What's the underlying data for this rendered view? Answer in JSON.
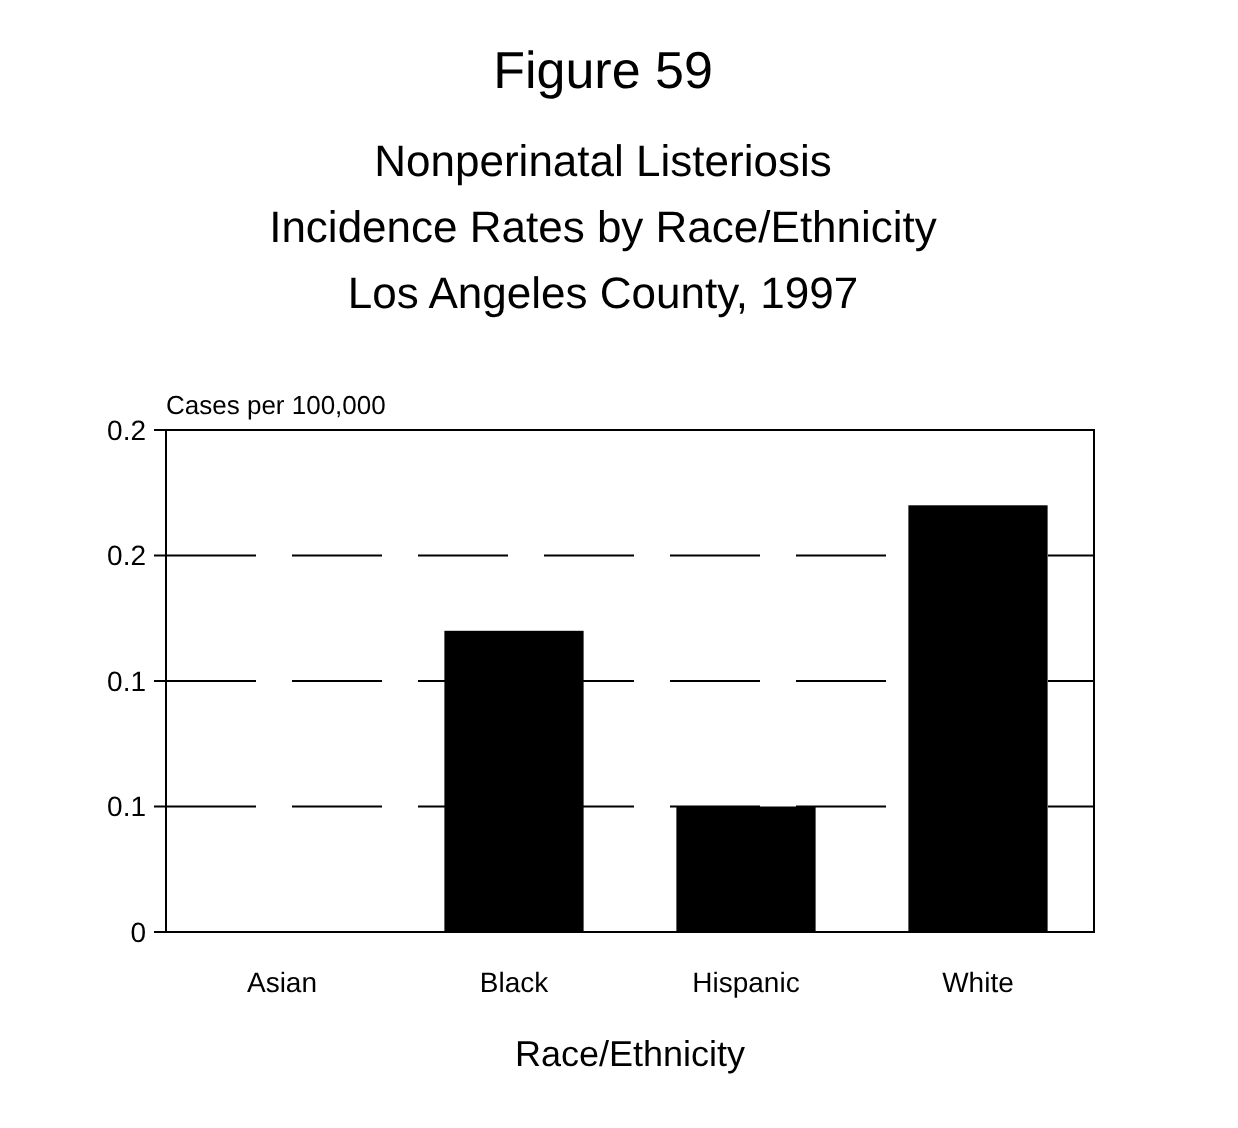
{
  "chart_data": {
    "type": "bar",
    "title": "Figure 59",
    "subtitle": "Nonperinatal Listeriosis\nIncidence Rates by Race/Ethnicity\nLos Angeles County, 1997",
    "ylabel": "Cases per 100,000",
    "xlabel": "Race/Ethnicity",
    "categories": [
      "Asian",
      "Black",
      "Hispanic",
      "White"
    ],
    "values": [
      0,
      0.12,
      0.05,
      0.17
    ],
    "color": "#000000",
    "ylim": [
      0,
      0.2
    ],
    "yticks": [
      0,
      {
        "value": 0.05,
        "label": "0.1"
      },
      {
        "value": 0.1,
        "label": "0.1"
      },
      {
        "value": 0.15,
        "label": "0.2"
      },
      {
        "value": 0.2,
        "label": "0.2"
      }
    ],
    "grid": "y"
  }
}
